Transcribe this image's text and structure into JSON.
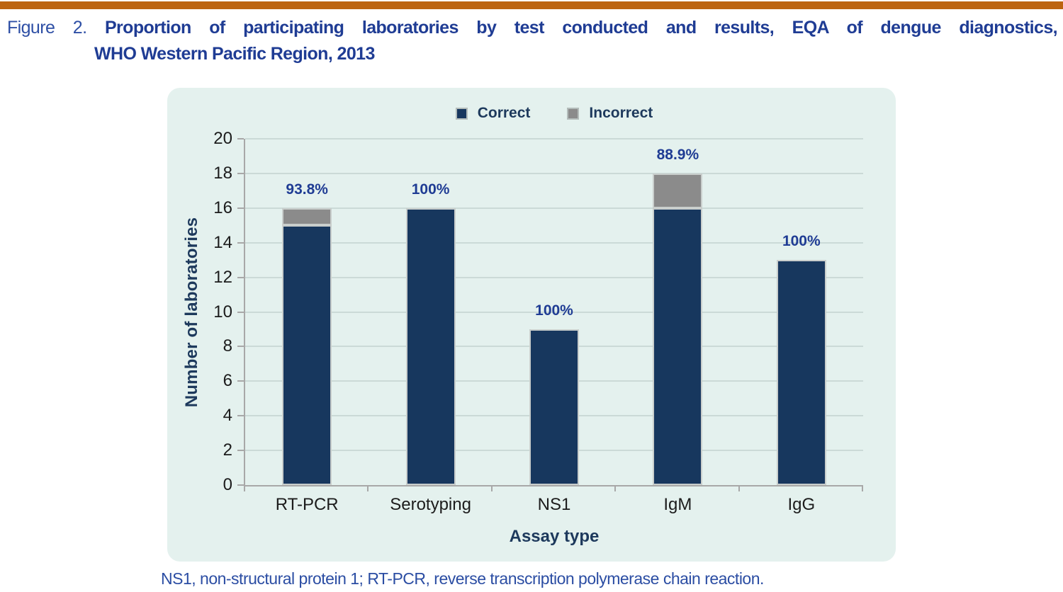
{
  "figure": {
    "label": "Figure 2.",
    "title_line1": "Proportion of participating laboratories by test conducted and results, EQA of dengue diagnostics,",
    "title_line2": "WHO Western Pacific Region, 2013",
    "footnote": "NS1, non-structural protein 1; RT-PCR, reverse transcription polymerase chain reaction."
  },
  "colors": {
    "accent_bar": "#BC6411",
    "title_blue": "#1F3C94",
    "panel_background": "#E4F1EE",
    "correct_navy": "#17375E",
    "incorrect_gray": "#8B8B8B",
    "percent_label_blue": "#1F3C94",
    "axis_gray": "#A8A8A8"
  },
  "chart_data": {
    "type": "bar",
    "stacked": true,
    "title": "Proportion of participating laboratories by test conducted and results, EQA of dengue diagnostics, WHO Western Pacific Region, 2013",
    "categories": [
      "RT-PCR",
      "Serotyping",
      "NS1",
      "IgM",
      "IgG"
    ],
    "series": [
      {
        "name": "Correct",
        "color": "#17375E",
        "values": [
          15,
          16,
          9,
          16,
          13
        ]
      },
      {
        "name": "Incorrect",
        "color": "#8B8B8B",
        "values": [
          1,
          0,
          0,
          2,
          0
        ]
      }
    ],
    "bar_labels": [
      "93.8%",
      "100%",
      "100%",
      "88.9%",
      "100%"
    ],
    "xlabel": "Assay type",
    "ylabel": "Number of laboratories",
    "ylim": [
      0,
      20
    ],
    "ytick_step": 2,
    "grid": true,
    "legend_position": "top-center"
  }
}
